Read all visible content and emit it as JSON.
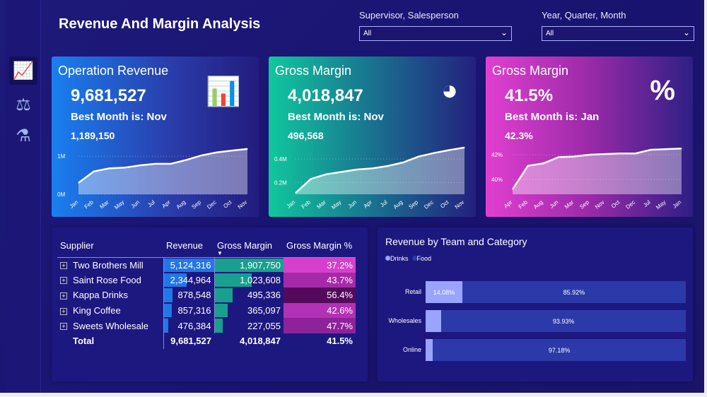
{
  "title": "Revenue And Margin Analysis",
  "filters": [
    {
      "label": "Supervisor, Salesperson",
      "value": "All"
    },
    {
      "label": "Year, Quarter, Month",
      "value": "All"
    }
  ],
  "sidebar": {
    "icons": [
      "growth-chart-icon",
      "balance-scale-icon",
      "flask-icon"
    ]
  },
  "cards": [
    {
      "title": "Operation Revenue",
      "value": "9,681,527",
      "best": "Best Month is: Nov",
      "best_value": "1,189,150",
      "icon": "bar-chart-icon",
      "chart_data": {
        "type": "area",
        "x": [
          "Jan",
          "Feb",
          "Mar",
          "May",
          "Jun",
          "Jul",
          "Apr",
          "Aug",
          "Sep",
          "Dec",
          "Oct",
          "Nov"
        ],
        "values": [
          300000,
          600000,
          680000,
          700000,
          760000,
          800000,
          800000,
          900000,
          1020000,
          1100000,
          1150000,
          1190000
        ],
        "yticks": [
          "0M",
          "1M"
        ],
        "ylim": [
          0,
          1300000
        ]
      }
    },
    {
      "title": "Gross Margin",
      "value": "4,018,847",
      "best": "Best Month is: Nov",
      "best_value": "496,568",
      "icon": "pie-chart-icon",
      "chart_data": {
        "type": "area",
        "x": [
          "Jan",
          "Feb",
          "Mar",
          "May",
          "Jun",
          "Apr",
          "Jul",
          "Aug",
          "Sep",
          "Dec",
          "Oct",
          "Nov"
        ],
        "values": [
          110000,
          230000,
          270000,
          290000,
          310000,
          320000,
          340000,
          370000,
          420000,
          450000,
          475000,
          497000
        ],
        "yticks": [
          "0.2M",
          "0.4M"
        ],
        "ylim": [
          100000,
          520000
        ]
      }
    },
    {
      "title": "Gross Margin",
      "value": "41.5%",
      "best": "Best Month is: Jan",
      "best_value": "42.3%",
      "icon": "percent-icon",
      "chart_data": {
        "type": "area",
        "x": [
          "Apr",
          "Feb",
          "Aug",
          "Jun",
          "Mar",
          "Sep",
          "Nov",
          "Oct",
          "Dec",
          "Jul",
          "May",
          "Jan"
        ],
        "values": [
          39.2,
          41.1,
          41.3,
          41.8,
          41.85,
          42.0,
          42.05,
          42.1,
          42.1,
          42.4,
          42.45,
          42.5
        ],
        "yticks": [
          "40%",
          "42%"
        ],
        "ylim": [
          38.8,
          42.8
        ]
      }
    }
  ],
  "table": {
    "columns": [
      "Supplier",
      "Revenue",
      "Gross Margin",
      "Gross Margin %"
    ],
    "rows": [
      {
        "supplier": "Two Brothers Mill",
        "revenue": "5,124,316",
        "rev": 5124316,
        "gm": "1,907,750",
        "gmv": 1907750,
        "gmp": "37.2%",
        "color": "#d63fcc"
      },
      {
        "supplier": "Saint Rose Food",
        "revenue": "2,344,964",
        "rev": 2344964,
        "gm": "1,023,608",
        "gmv": 1023608,
        "gmp": "43.7%",
        "color": "#a52aa8"
      },
      {
        "supplier": "Kappa Drinks",
        "revenue": "878,548",
        "rev": 878548,
        "gm": "495,336",
        "gmv": 495336,
        "gmp": "56.4%",
        "color": "#540a5c"
      },
      {
        "supplier": "King Coffee",
        "revenue": "857,316",
        "rev": 857316,
        "gm": "365,097",
        "gmv": 365097,
        "gmp": "42.6%",
        "color": "#b132b4"
      },
      {
        "supplier": "Sweets Wholesale",
        "revenue": "476,384",
        "rev": 476384,
        "gm": "227,055",
        "gmv": 227055,
        "gmp": "47.7%",
        "color": "#8e2399"
      }
    ],
    "total": {
      "label": "Total",
      "revenue": "9,681,527",
      "gm": "4,018,847",
      "gmp": "41.5%"
    }
  },
  "team_chart": {
    "title": "Revenue by Team and Category",
    "legend": [
      "Drinks",
      "Food"
    ],
    "colors": {
      "Drinks": "#9aa4ff",
      "Food": "#2b3aa8"
    },
    "chart_data": {
      "type": "bar",
      "stacked": "100%",
      "orientation": "horizontal",
      "categories": [
        "Retail",
        "Wholesales",
        "Online"
      ],
      "series": [
        {
          "name": "Drinks",
          "values": [
            14.08,
            6.07,
            2.82
          ],
          "labels": [
            "14.08%",
            "",
            ""
          ]
        },
        {
          "name": "Food",
          "values": [
            85.92,
            93.93,
            97.18
          ],
          "labels": [
            "85.92%",
            "93.93%",
            "97.18%"
          ]
        }
      ]
    }
  }
}
